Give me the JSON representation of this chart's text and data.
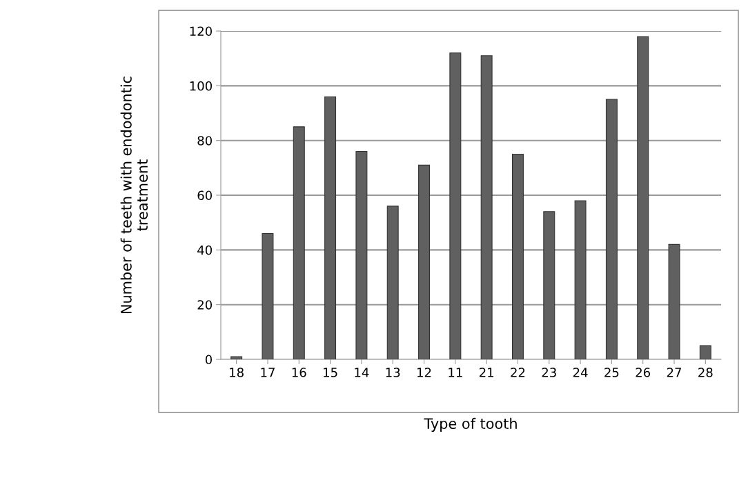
{
  "chart_data": {
    "type": "bar",
    "xlabel": "Type of tooth",
    "ylabel": "Number of teeth with endodontic\ntreatment",
    "categories": [
      "18",
      "17",
      "16",
      "15",
      "14",
      "13",
      "12",
      "11",
      "21",
      "22",
      "23",
      "24",
      "25",
      "26",
      "27",
      "28"
    ],
    "values": [
      1,
      46,
      85,
      96,
      76,
      56,
      71,
      112,
      111,
      75,
      54,
      58,
      95,
      118,
      42,
      5
    ],
    "color": "#606060",
    "ylim": [
      0,
      120
    ],
    "yticks": [
      0,
      20,
      40,
      60,
      80,
      100,
      120
    ],
    "grid": "y",
    "legend": false
  }
}
